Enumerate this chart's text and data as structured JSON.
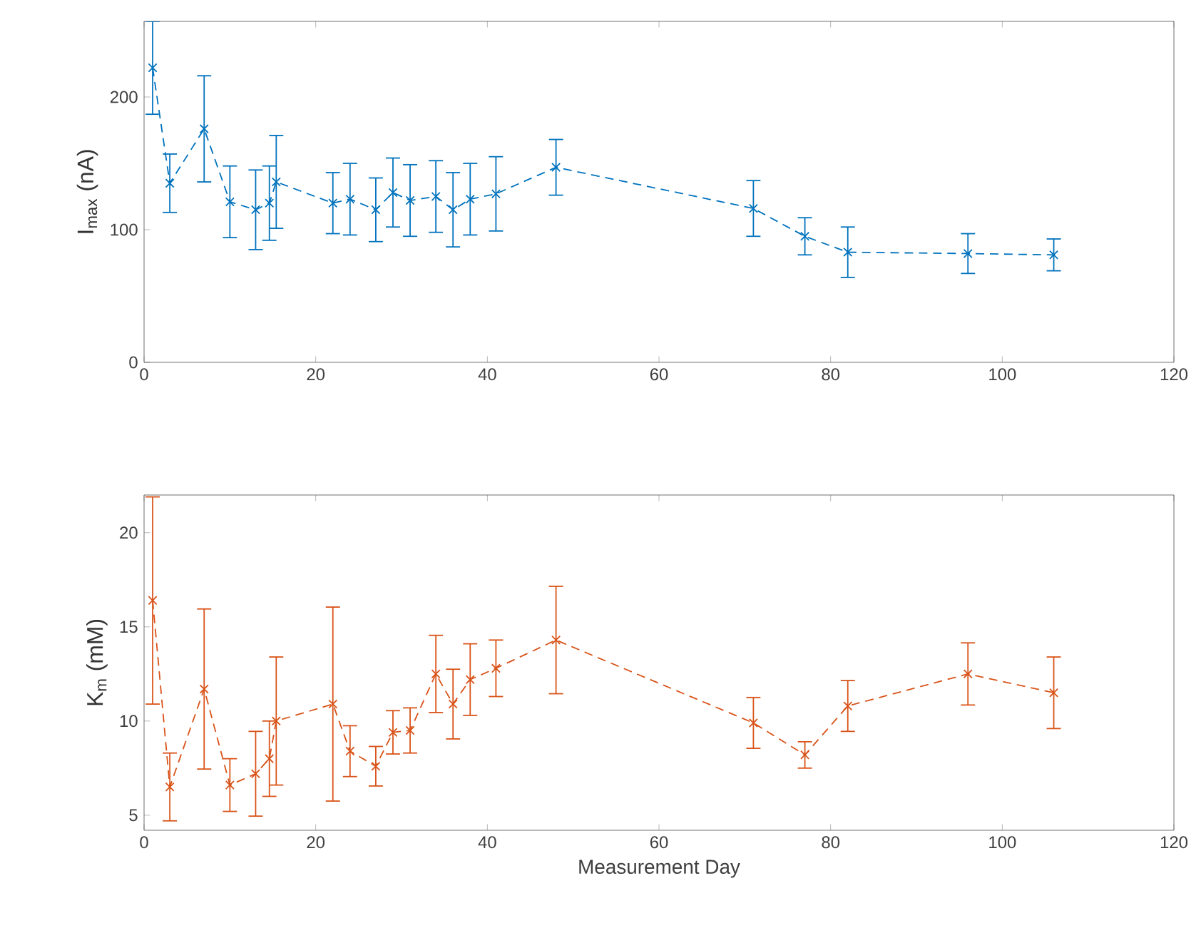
{
  "chart_data": [
    {
      "type": "line",
      "ylabel": "I$_{max}$ (nA)",
      "xlim": [
        0,
        120
      ],
      "ylim": [
        0,
        257
      ],
      "xticks": [
        0,
        20,
        40,
        60,
        80,
        100,
        120
      ],
      "yticks": [
        0,
        100,
        200
      ],
      "marker": "cross",
      "line_style": "dashed",
      "x": [
        1,
        3,
        7,
        10,
        13,
        14.6,
        15.4,
        22,
        24,
        27,
        29,
        31,
        34,
        36,
        38,
        41,
        48,
        71,
        77,
        82,
        96,
        106
      ],
      "series": [
        {
          "color": "#0072bd",
          "values": [
            222,
            135,
            176,
            121,
            115,
            120,
            136,
            120,
            123,
            115,
            128,
            122,
            125,
            115,
            123,
            127,
            147,
            116,
            95,
            83,
            82,
            81
          ],
          "errors": [
            35,
            22,
            40,
            27,
            30,
            28,
            35,
            23,
            27,
            24,
            26,
            27,
            27,
            28,
            27,
            28,
            21,
            21,
            14,
            19,
            15,
            12
          ]
        }
      ]
    },
    {
      "type": "line",
      "xlabel": "Measurement Day",
      "ylabel": "K$_{m}$ (mM)",
      "xlim": [
        0,
        120
      ],
      "ylim": [
        4.2,
        22
      ],
      "xticks": [
        0,
        20,
        40,
        60,
        80,
        100,
        120
      ],
      "yticks": [
        5,
        10,
        15,
        20
      ],
      "marker": "cross",
      "line_style": "dashed",
      "x": [
        1,
        3,
        7,
        10,
        13,
        14.6,
        15.4,
        22,
        24,
        27,
        29,
        31,
        34,
        36,
        38,
        41,
        48,
        71,
        77,
        82,
        96,
        106
      ],
      "series": [
        {
          "color": "#d95319",
          "values": [
            16.4,
            6.5,
            11.7,
            6.6,
            7.2,
            8.0,
            10.0,
            10.9,
            8.4,
            7.6,
            9.4,
            9.5,
            12.5,
            10.9,
            12.2,
            12.8,
            14.3,
            9.9,
            8.2,
            10.8,
            12.5,
            11.5
          ],
          "errors": [
            5.5,
            1.8,
            4.25,
            1.4,
            2.25,
            2.0,
            3.4,
            5.15,
            1.35,
            1.05,
            1.15,
            1.2,
            2.05,
            1.85,
            1.9,
            1.5,
            2.85,
            1.35,
            0.7,
            1.35,
            1.65,
            1.9
          ]
        }
      ]
    }
  ]
}
